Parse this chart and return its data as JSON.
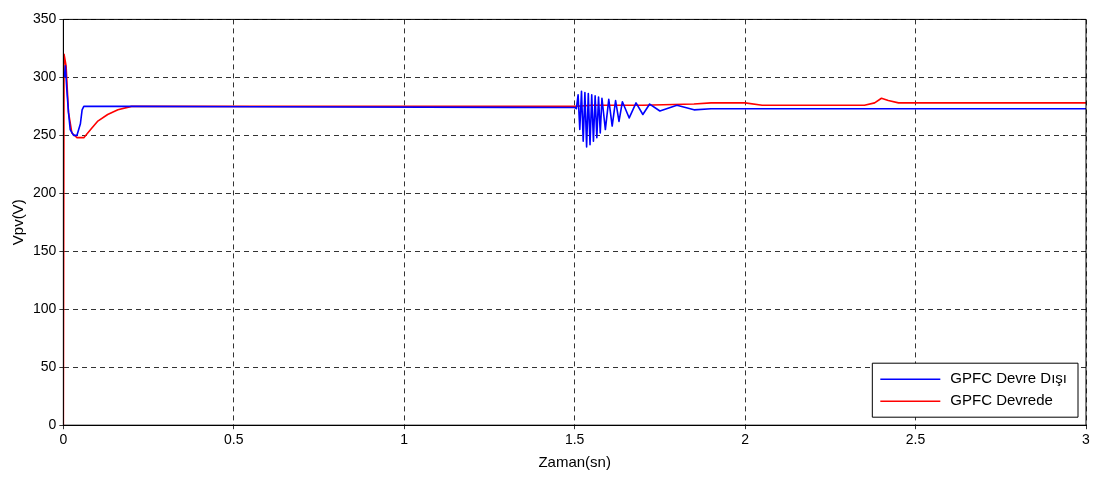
{
  "chart_data": {
    "type": "line",
    "xlabel": "Zaman(sn)",
    "ylabel": "Vpv(V)",
    "xlim": [
      0,
      3
    ],
    "xticks": [
      0,
      0.5,
      1,
      1.5,
      2,
      2.5,
      3
    ],
    "ylim": [
      0,
      350
    ],
    "yticks": [
      0,
      50,
      100,
      150,
      200,
      250,
      300,
      350
    ],
    "grid": true,
    "legend": "bottom right",
    "marker": "none",
    "line_style": "solid",
    "series": [
      {
        "name": "GPFC Devre Dışı",
        "color": "#0000ff",
        "x": [
          0.003,
          0.006,
          0.01,
          0.015,
          0.02,
          0.03,
          0.04,
          0.05,
          0.055,
          0.06,
          0.2,
          1.5,
          1.505,
          1.51,
          1.515,
          1.52,
          1.525,
          1.53,
          1.535,
          1.54,
          1.545,
          1.55,
          1.555,
          1.56,
          1.565,
          1.57,
          1.575,
          1.58,
          1.59,
          1.6,
          1.61,
          1.62,
          1.63,
          1.64,
          1.66,
          1.68,
          1.7,
          1.72,
          1.75,
          1.8,
          1.85,
          1.9,
          3
        ],
        "values": [
          300,
          310,
          290,
          270,
          255,
          250,
          250,
          260,
          272,
          275,
          275,
          274,
          273,
          285,
          255,
          288,
          245,
          287,
          240,
          286,
          242,
          285,
          245,
          284,
          248,
          283,
          252,
          282,
          255,
          281,
          258,
          280,
          262,
          279,
          265,
          278,
          268,
          277,
          271,
          276,
          272,
          273,
          273
        ]
      },
      {
        "name": "GPFC Devrede",
        "color": "#ff0000",
        "x": [
          0,
          0.002,
          0.008,
          0.015,
          0.025,
          0.04,
          0.06,
          0.08,
          0.1,
          0.13,
          0.16,
          0.2,
          1.5,
          1.55,
          1.7,
          1.85,
          1.9,
          2.0,
          2.05,
          2.35,
          2.38,
          2.4,
          2.42,
          2.45,
          3
        ],
        "values": [
          0,
          320,
          310,
          270,
          252,
          248,
          248,
          255,
          262,
          268,
          272,
          275,
          275,
          276,
          276,
          277,
          278,
          278,
          276,
          276,
          278,
          282,
          280,
          278,
          278
        ]
      }
    ]
  }
}
